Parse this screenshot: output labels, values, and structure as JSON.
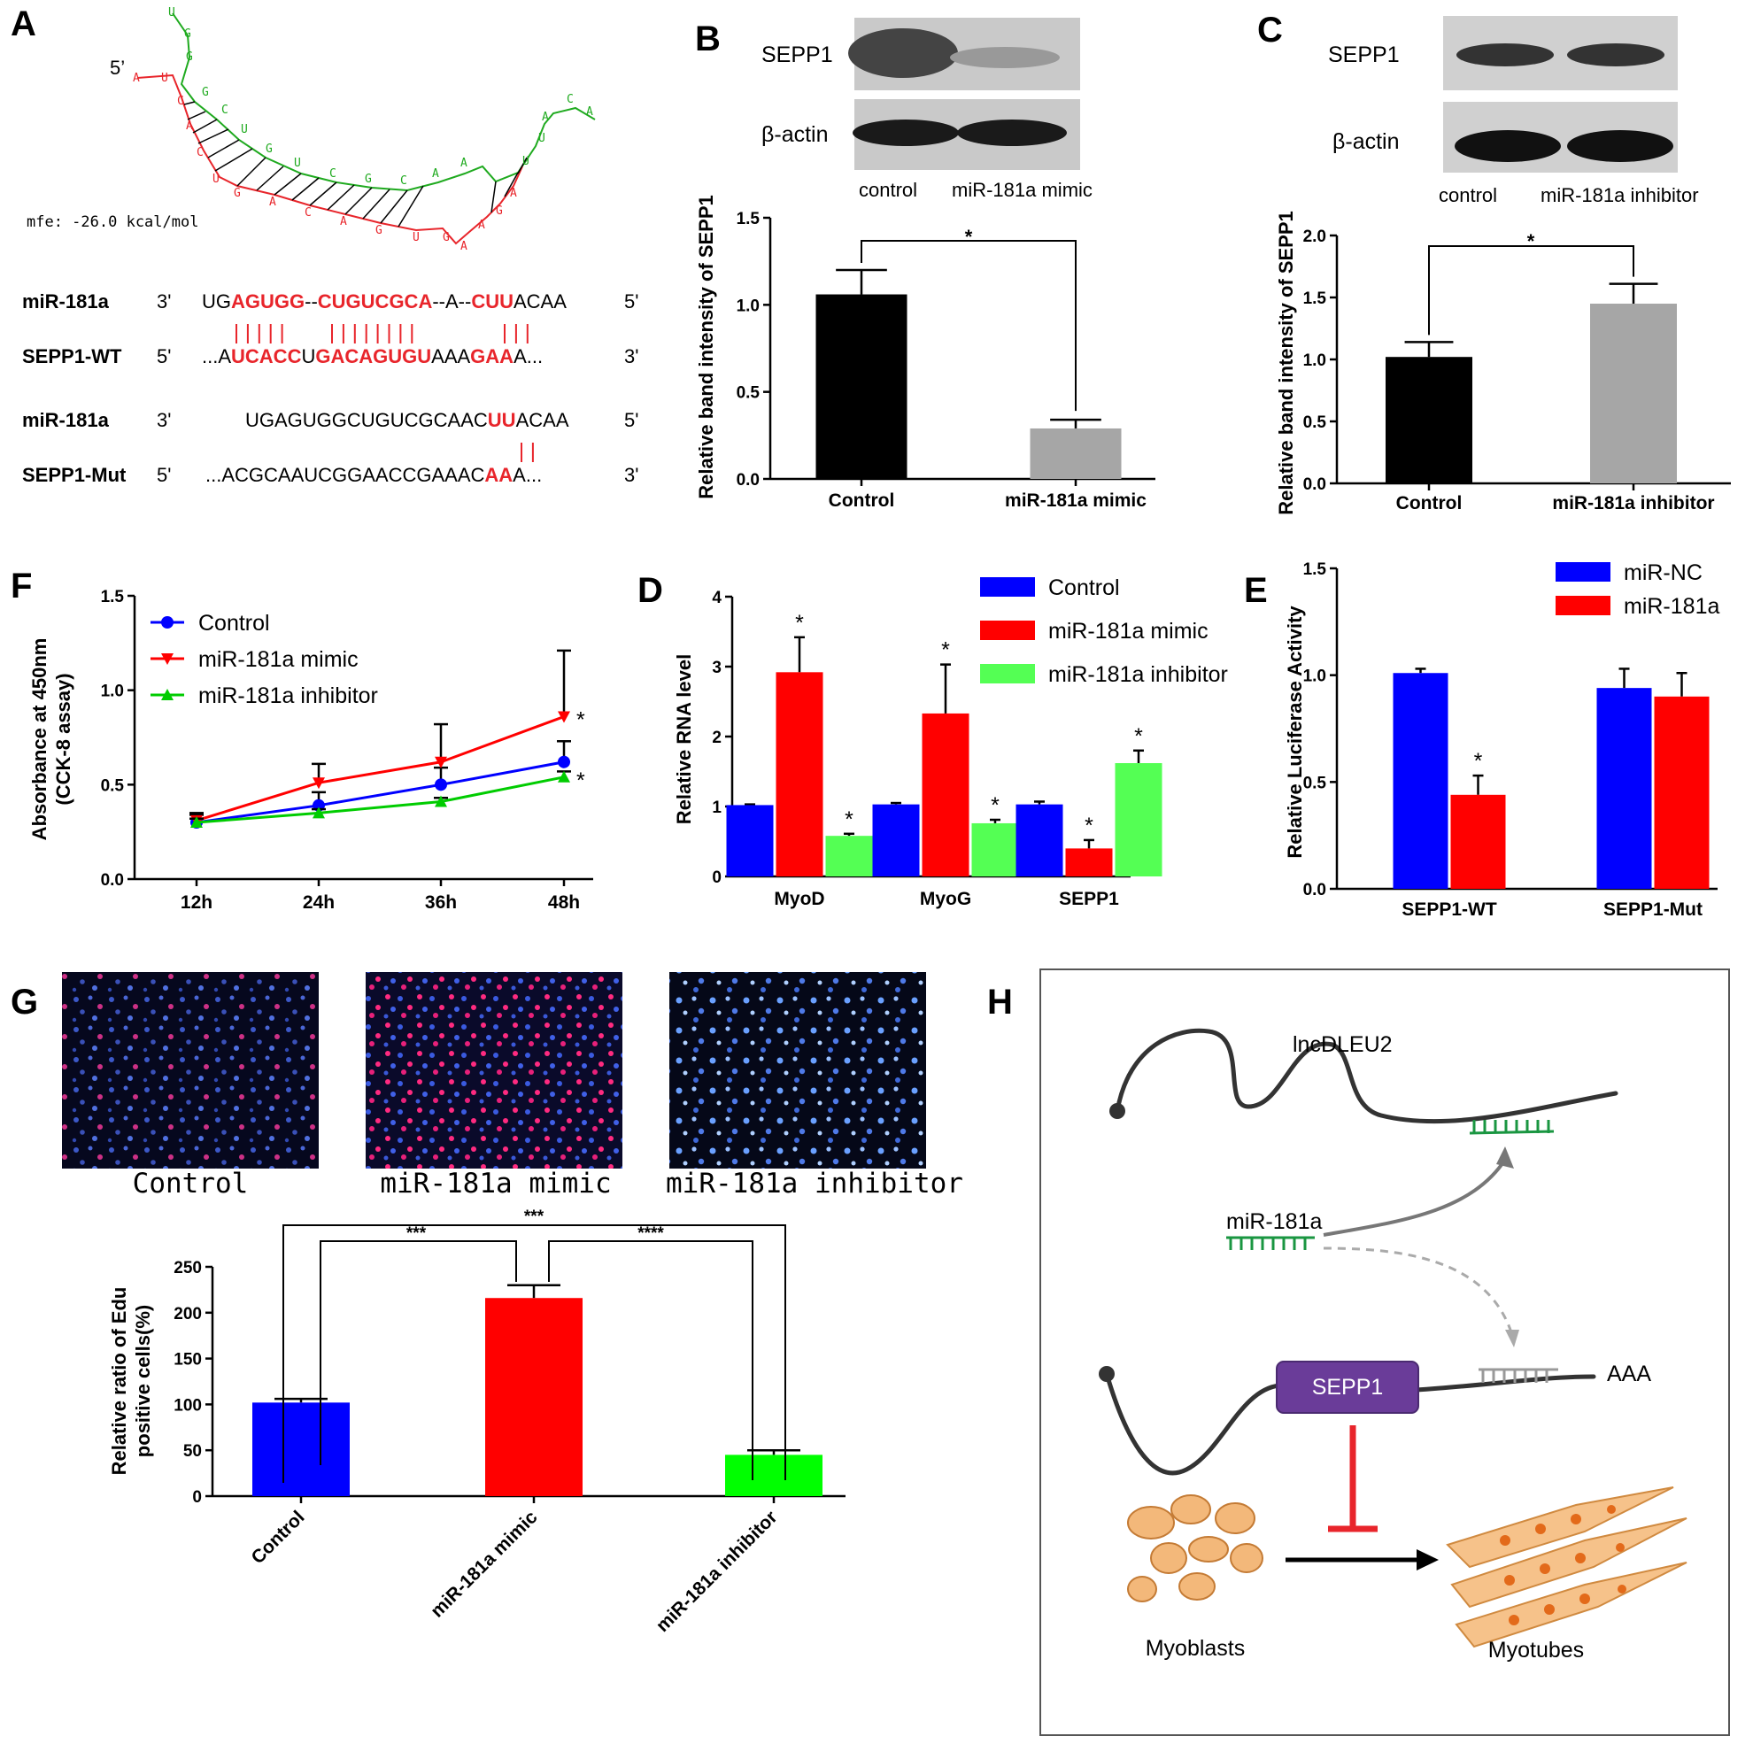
{
  "panel_labels": {
    "A": "A",
    "B": "B",
    "C": "C",
    "D": "D",
    "E": "E",
    "F": "F",
    "G": "G",
    "H": "H"
  },
  "panelA": {
    "five_prime": "5’",
    "mfe": "mfe: -26.0 kcal/mol",
    "rows": [
      {
        "name": "miR-181a",
        "end_left": "3'",
        "end_right": "5'",
        "seq": [
          [
            "UG",
            "n"
          ],
          [
            "AGUGG",
            "r"
          ],
          [
            "--",
            "n"
          ],
          [
            "CUGUCGCA",
            "r"
          ],
          [
            "--A--",
            "n"
          ],
          [
            "CUU",
            "r"
          ],
          [
            "ACAA",
            "n"
          ]
        ],
        "pairs": "|||||  ||||||||    |||"
      },
      {
        "name": "SEPP1-WT",
        "end_left": "5'",
        "end_right": "3'",
        "seq": [
          [
            "...A",
            "n"
          ],
          [
            "UCACC",
            "r"
          ],
          [
            "U",
            "n"
          ],
          [
            "GACAGUGU",
            "r"
          ],
          [
            "AAA",
            "n"
          ],
          [
            "GAA",
            "r"
          ],
          [
            "A...",
            "n"
          ]
        ]
      },
      {
        "name": "miR-181a",
        "end_left": "3'",
        "end_right": "5'",
        "seq": [
          [
            "UGAGUGGCUGUCGCAAC",
            "n"
          ],
          [
            "UU",
            "r"
          ],
          [
            "ACAA",
            "n"
          ]
        ],
        "pairs": "||"
      },
      {
        "name": "SEPP1-Mut",
        "end_left": "5'",
        "end_right": "3'",
        "seq": [
          [
            "...ACGCAAUCGGAACCGAAAC",
            "n"
          ],
          [
            "AA",
            "r"
          ],
          [
            "A...",
            "n"
          ]
        ]
      }
    ]
  },
  "panelB": {
    "blot_labels": [
      "SEPP1",
      "β-actin"
    ],
    "lanes": [
      "control",
      "miR-181a mimic"
    ],
    "sig": "*"
  },
  "panelC": {
    "blot_labels": [
      "SEPP1",
      "β-actin"
    ],
    "lanes": [
      "control",
      "miR-181a inhibitor"
    ],
    "sig": "*"
  },
  "panelG": {
    "image_labels": [
      "Control",
      "miR-181a mimic",
      "miR-181a inhibitor"
    ],
    "sig": [
      "***",
      "***",
      "****"
    ]
  },
  "panelH": {
    "labels": {
      "lnc": "lncDLEU2",
      "mir": "miR-181a",
      "sepp1": "SEPP1",
      "aaa": "AAA",
      "myoblasts": "Myoblasts",
      "myotubes": "Myotubes"
    }
  },
  "colors": {
    "black": "#000000",
    "gray": "#a6a6a6",
    "blue": "#0000ff",
    "red": "#ff0000",
    "green": "#54ff54",
    "accent_red": "#e8252b",
    "seq_red": "#e8252b",
    "miR_green": "#1a9641",
    "sepp1_purple": "#6a3c99"
  },
  "chart_data": [
    {
      "id": "B",
      "type": "bar",
      "categories": [
        "Control",
        "miR-181a mimic"
      ],
      "values": [
        1.06,
        0.29
      ],
      "errors": [
        0.14,
        0.05
      ],
      "ylabel": "Relative  band intensity of SEPP1",
      "ylim": [
        0,
        1.5
      ],
      "yticks": [
        0.0,
        0.5,
        1.0,
        1.5
      ],
      "tick_labels": [
        "0.0",
        "0.5",
        "1.0",
        "1.5"
      ],
      "colors": [
        "#000000",
        "#a6a6a6"
      ],
      "significance": "*"
    },
    {
      "id": "C",
      "type": "bar",
      "categories": [
        "Control",
        "miR-181a inhibitor"
      ],
      "values": [
        1.02,
        1.45
      ],
      "errors": [
        0.12,
        0.16
      ],
      "ylabel": "Relative  band intensity of SEPP1",
      "ylim": [
        0,
        2.0
      ],
      "yticks": [
        0.0,
        0.5,
        1.0,
        1.5,
        2.0
      ],
      "tick_labels": [
        "0.0",
        "0.5",
        "1.0",
        "1.5",
        "2.0"
      ],
      "colors": [
        "#000000",
        "#a6a6a6"
      ],
      "significance": "*"
    },
    {
      "id": "F",
      "type": "line",
      "x": [
        "12h",
        "24h",
        "36h",
        "48h"
      ],
      "ylabel": "Absorbance at 450nm\n(CCK-8 assay)",
      "ylim": [
        0,
        1.5
      ],
      "yticks": [
        0.0,
        0.5,
        1.0,
        1.5
      ],
      "tick_labels": [
        "0.0",
        "0.5",
        "1.0",
        "1.5"
      ],
      "legend": "top-left",
      "series": [
        {
          "name": "Control",
          "color": "#0000ff",
          "marker": "circle",
          "values": [
            0.3,
            0.39,
            0.5,
            0.62
          ],
          "errors": [
            0.04,
            0.07,
            0.09,
            0.11
          ]
        },
        {
          "name": "miR-181a mimic",
          "color": "#ff0000",
          "marker": "triangle-down",
          "values": [
            0.31,
            0.51,
            0.62,
            0.86
          ],
          "errors": [
            0.04,
            0.1,
            0.2,
            0.35
          ]
        },
        {
          "name": "miR-181a inhibitor",
          "color": "#00cc00",
          "marker": "triangle-up",
          "values": [
            0.3,
            0.35,
            0.41,
            0.54
          ],
          "errors": [
            0.02,
            0.02,
            0.02,
            0.03
          ]
        }
      ],
      "annotations": [
        {
          "series": "miR-181a mimic",
          "x": "48h",
          "text": "*"
        },
        {
          "series": "miR-181a inhibitor",
          "x": "48h",
          "text": "*"
        }
      ]
    },
    {
      "id": "D",
      "type": "bar",
      "categories": [
        "MyoD",
        "MyoG",
        "SEPP1"
      ],
      "ylabel": "Relative  RNA level",
      "ylim": [
        0,
        4
      ],
      "yticks": [
        0,
        1,
        2,
        3,
        4
      ],
      "tick_labels": [
        "0",
        "1",
        "2",
        "3",
        "4"
      ],
      "legend": "top-right",
      "series": [
        {
          "name": "Control",
          "color": "#0000ff",
          "values": [
            1.02,
            1.03,
            1.03
          ],
          "errors": [
            0.01,
            0.02,
            0.04
          ],
          "sig": [
            "",
            "",
            ""
          ]
        },
        {
          "name": "miR-181a mimic",
          "color": "#ff0000",
          "values": [
            2.92,
            2.33,
            0.4
          ],
          "errors": [
            0.5,
            0.7,
            0.12
          ],
          "sig": [
            "*",
            "*",
            "*"
          ]
        },
        {
          "name": "miR-181a inhibitor",
          "color": "#54ff54",
          "values": [
            0.58,
            0.76,
            1.62
          ],
          "errors": [
            0.03,
            0.05,
            0.18
          ],
          "sig": [
            "*",
            "*",
            "*"
          ]
        }
      ]
    },
    {
      "id": "E",
      "type": "bar",
      "categories": [
        "SEPP1-WT",
        "SEPP1-Mut"
      ],
      "ylabel": "Relative Luciferase Activity",
      "ylim": [
        0,
        1.5
      ],
      "yticks": [
        0.0,
        0.5,
        1.0,
        1.5
      ],
      "tick_labels": [
        "0.0",
        "0.5",
        "1.0",
        "1.5"
      ],
      "legend": "top-right",
      "series": [
        {
          "name": "miR-NC",
          "color": "#0000ff",
          "values": [
            1.01,
            0.94
          ],
          "errors": [
            0.02,
            0.09
          ],
          "sig": [
            "",
            ""
          ]
        },
        {
          "name": "miR-181a",
          "color": "#ff0000",
          "values": [
            0.44,
            0.9
          ],
          "errors": [
            0.09,
            0.11
          ],
          "sig": [
            "*",
            ""
          ]
        }
      ]
    },
    {
      "id": "G",
      "type": "bar",
      "categories": [
        "Control",
        "miR-181a mimic",
        "miR-181a inhibitor"
      ],
      "values": [
        102,
        216,
        45
      ],
      "errors": [
        4,
        14,
        5
      ],
      "ylabel": "Relative ratio of Edu\npositive cells(%)",
      "ylim": [
        0,
        250
      ],
      "yticks": [
        0,
        50,
        100,
        150,
        200,
        250
      ],
      "tick_labels": [
        "0",
        "50",
        "100",
        "150",
        "200",
        "250"
      ],
      "colors": [
        "#0000ff",
        "#ff0000",
        "#00ff00"
      ],
      "comparisons": [
        {
          "a": 0,
          "b": 1,
          "text": "***"
        },
        {
          "a": 0,
          "b": 2,
          "text": "***"
        },
        {
          "a": 1,
          "b": 2,
          "text": "****"
        }
      ]
    }
  ]
}
